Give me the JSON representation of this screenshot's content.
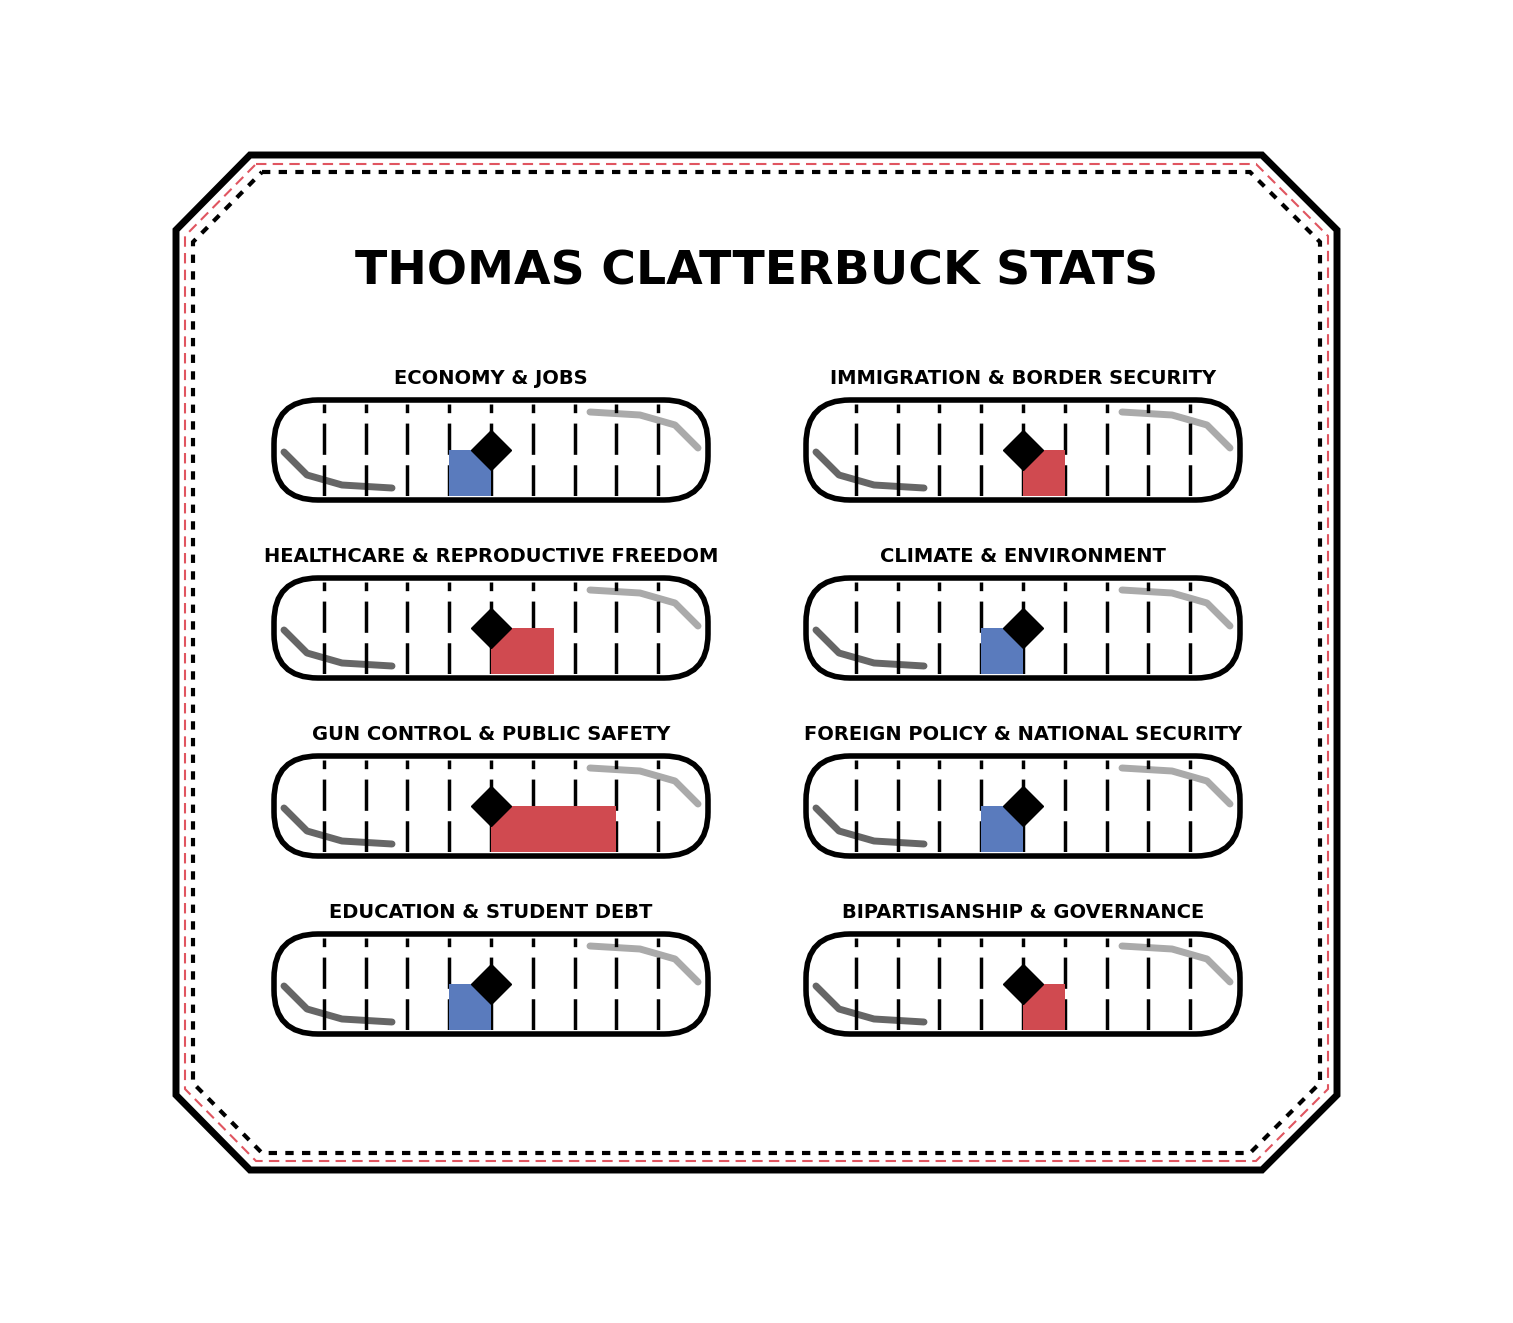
{
  "title": "THOMAS CLATTERBUCK STATS",
  "chart_data": [
    {
      "type": "bar",
      "orientation": "horizontal",
      "title": "ECONOMY & JOBS",
      "values": [
        -1
      ],
      "color": "#5a7bbd",
      "xlim": [
        -5,
        5
      ],
      "xticks": [
        -4,
        -3,
        -2,
        -1,
        0,
        1,
        2,
        3,
        4
      ],
      "tick_labels": false
    },
    {
      "type": "bar",
      "orientation": "horizontal",
      "title": "HEALTHCARE & REPRODUCTIVE FREEDOM",
      "values": [
        1.5
      ],
      "color": "#d04a50",
      "xlim": [
        -5,
        5
      ],
      "xticks": [
        -4,
        -3,
        -2,
        -1,
        0,
        1,
        2,
        3,
        4
      ],
      "tick_labels": false
    },
    {
      "type": "bar",
      "orientation": "horizontal",
      "title": "GUN CONTROL & PUBLIC SAFETY",
      "values": [
        3
      ],
      "color": "#d04a50",
      "xlim": [
        -5,
        5
      ],
      "xticks": [
        -4,
        -3,
        -2,
        -1,
        0,
        1,
        2,
        3,
        4
      ],
      "tick_labels": false
    },
    {
      "type": "bar",
      "orientation": "horizontal",
      "title": "EDUCATION & STUDENT DEBT",
      "values": [
        -1
      ],
      "color": "#5a7bbd",
      "xlim": [
        -5,
        5
      ],
      "xticks": [
        -4,
        -3,
        -2,
        -1,
        0,
        1,
        2,
        3,
        4
      ],
      "tick_labels": false
    },
    {
      "type": "bar",
      "orientation": "horizontal",
      "title": "IMMIGRATION & BORDER SECURITY",
      "values": [
        1
      ],
      "color": "#d04a50",
      "xlim": [
        -5,
        5
      ],
      "xticks": [
        -4,
        -3,
        -2,
        -1,
        0,
        1,
        2,
        3,
        4
      ],
      "tick_labels": false
    },
    {
      "type": "bar",
      "orientation": "horizontal",
      "title": "CLIMATE & ENVIRONMENT",
      "values": [
        -1
      ],
      "color": "#5a7bbd",
      "xlim": [
        -5,
        5
      ],
      "xticks": [
        -4,
        -3,
        -2,
        -1,
        0,
        1,
        2,
        3,
        4
      ],
      "tick_labels": false
    },
    {
      "type": "bar",
      "orientation": "horizontal",
      "title": "FOREIGN POLICY & NATIONAL SECURITY",
      "values": [
        -1
      ],
      "color": "#5a7bbd",
      "xlim": [
        -5,
        5
      ],
      "xticks": [
        -4,
        -3,
        -2,
        -1,
        0,
        1,
        2,
        3,
        4
      ],
      "tick_labels": false
    },
    {
      "type": "bar",
      "orientation": "horizontal",
      "title": "BIPARTISANSHIP & GOVERNANCE",
      "values": [
        1
      ],
      "color": "#d04a50",
      "xlim": [
        -5,
        5
      ],
      "xticks": [
        -4,
        -3,
        -2,
        -1,
        0,
        1,
        2,
        3,
        4
      ],
      "tick_labels": false
    }
  ]
}
